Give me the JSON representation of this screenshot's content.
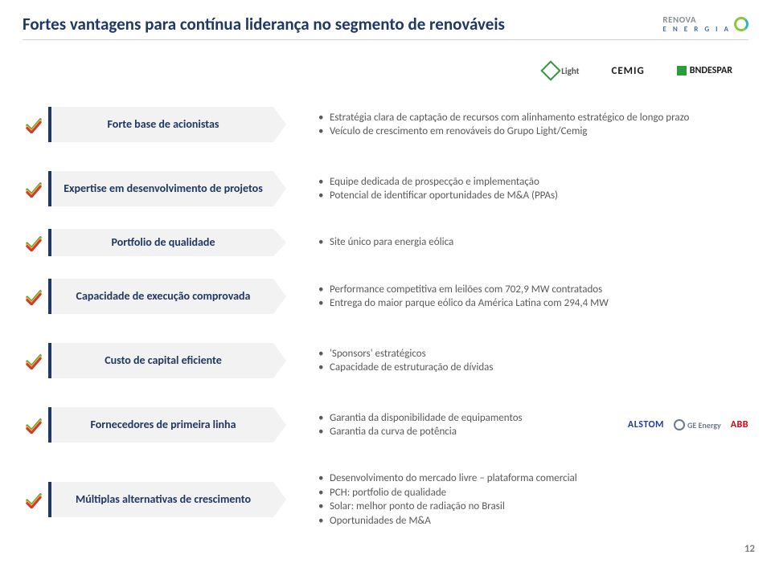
{
  "page_number": "12",
  "title": "Fortes vantagens para contínua liderança no segmento de renováveis",
  "brand": {
    "name": "RENOVA",
    "sub": "E N E R G I A"
  },
  "top_logos": {
    "light": "Light",
    "cemig": "CEMIG",
    "bndes": "BNDESPAR"
  },
  "rows": [
    {
      "tag": "Forte base de acionistas",
      "bullets": [
        "Estratégia clara de captação de recursos com alinhamento estratégico de longo prazo",
        "Veículo de crescimento em renováveis do Grupo Light/Cemig"
      ]
    },
    {
      "tag": "Expertise em desenvolvimento de projetos",
      "bullets": [
        "Equipe dedicada de prospecção e implementação",
        "Potencial de identificar oportunidades de M&A (PPAs)"
      ]
    },
    {
      "tag": "Portfolio de qualidade",
      "bullets": [
        "Site único para energia eólica"
      ]
    },
    {
      "tag": "Capacidade de execução comprovada",
      "bullets": [
        "Performance competitiva em leilões com 702,9 MW contratados",
        "Entrega do maior parque eólico da América Latina com 294,4 MW"
      ]
    },
    {
      "tag": "Custo de capital eficiente",
      "bullets": [
        "'Sponsors' estratégicos",
        "Capacidade de estruturação de dívidas"
      ]
    },
    {
      "tag": "Fornecedores de primeira linha",
      "bullets": [
        "Garantia da disponibilidade de equipamentos",
        "Garantia da curva de potência"
      ],
      "partners": {
        "alstom": "ALSTOM",
        "ge": "GE Energy",
        "abb": "ABB"
      }
    },
    {
      "tag": "Múltiplas alternativas de crescimento",
      "bullets": [
        "Desenvolvimento do mercado livre – plataforma comercial",
        "PCH: portfolio de qualidade",
        "Solar: melhor ponto de radiação no Brasil",
        "Oportunidades de M&A"
      ]
    }
  ],
  "colors": {
    "title": "#1f3864",
    "tag_bg": "#f2f2f2",
    "tag_border": "#1f3864",
    "text": "#595959",
    "check_green": "#64a038",
    "check_yellow": "#e7b73b",
    "check_red": "#cf3b2f"
  }
}
